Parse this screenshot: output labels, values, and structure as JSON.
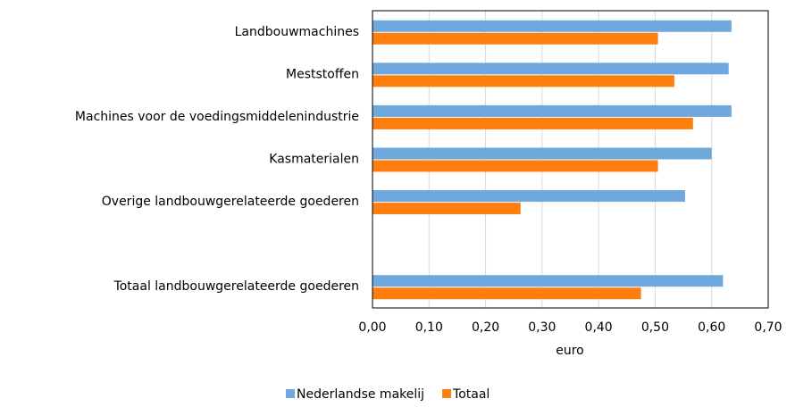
{
  "chart_data": {
    "type": "bar",
    "orientation": "horizontal",
    "categories": [
      "Landbouwmachines",
      "Meststoffen",
      "Machines voor de voedingsmiddelenindustrie",
      "Kasmaterialen",
      "Overige landbouwgerelateerde goederen",
      null,
      "Totaal landbouwgerelateerde goederen"
    ],
    "series": [
      {
        "name": "Nederlandse makelij",
        "color": "#6fa8dc",
        "values": [
          0.635,
          0.63,
          0.635,
          0.6,
          0.553,
          null,
          0.62
        ]
      },
      {
        "name": "Totaal",
        "color": "#ff7f0e",
        "values": [
          0.505,
          0.534,
          0.567,
          0.505,
          0.262,
          null,
          0.475
        ]
      }
    ],
    "x_label": "euro",
    "xlim": [
      0,
      0.7
    ],
    "xticks": [
      {
        "value": 0,
        "label": "0,00"
      },
      {
        "value": 0.1,
        "label": "0,10"
      },
      {
        "value": 0.2,
        "label": "0,20"
      },
      {
        "value": 0.3,
        "label": "0,30"
      },
      {
        "value": 0.4,
        "label": "0,40"
      },
      {
        "value": 0.5,
        "label": "0,50"
      },
      {
        "value": 0.6,
        "label": "0,60"
      },
      {
        "value": 0.7,
        "label": "0,70"
      }
    ],
    "grid": true,
    "legend": "bottom"
  }
}
